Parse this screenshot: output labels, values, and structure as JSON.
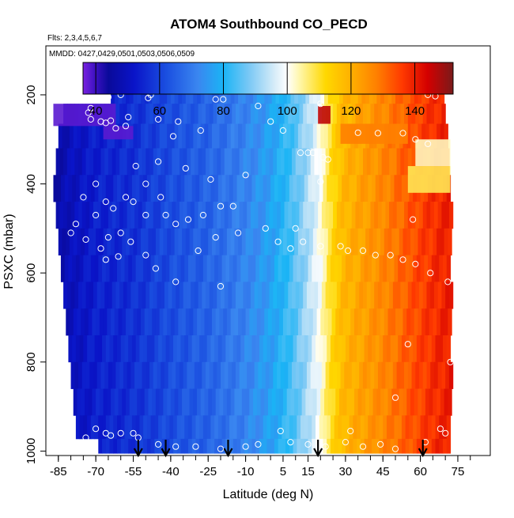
{
  "chart_data": {
    "type": "heatmap",
    "title": "ATOM4 Southbound CO_PECD",
    "subtitle_flights": "Flts: 2,3,4,5,6,7",
    "subtitle_dates": "MMDD: 0427,0429,0501,0503,0506,0509",
    "xlabel": "Latitude (deg N)",
    "ylabel": "PSXC (mbar)",
    "xlim": [
      -90,
      88
    ],
    "ylim": [
      1010,
      90
    ],
    "y_reverse": true,
    "x_ticks": [
      -85,
      -70,
      -55,
      -40,
      -25,
      -10,
      5,
      15,
      30,
      45,
      60,
      75
    ],
    "y_ticks": [
      200,
      400,
      600,
      800,
      1000
    ],
    "colorbar": {
      "range": [
        36,
        152
      ],
      "ticks": [
        40,
        60,
        80,
        100,
        120,
        140
      ],
      "divider_values": [
        40,
        60,
        80,
        100,
        120,
        140
      ],
      "stops": [
        [
          36,
          "#7a22e0"
        ],
        [
          40,
          "#3a10c0"
        ],
        [
          44,
          "#0a0a9a"
        ],
        [
          52,
          "#0a14c8"
        ],
        [
          62,
          "#1a4ee0"
        ],
        [
          72,
          "#3a86f0"
        ],
        [
          80,
          "#1ab4f5"
        ],
        [
          88,
          "#7ac8f5"
        ],
        [
          96,
          "#d6ecf8"
        ],
        [
          100,
          "#ffffff"
        ],
        [
          104,
          "#fff6a8"
        ],
        [
          112,
          "#ffd800"
        ],
        [
          120,
          "#ffb000"
        ],
        [
          128,
          "#ff8000"
        ],
        [
          136,
          "#ff3a00"
        ],
        [
          144,
          "#d40000"
        ],
        [
          152,
          "#7a1a1a"
        ]
      ]
    },
    "field": {
      "pressure_rows": [
        {
          "p": 200,
          "lat_min": -64,
          "lat_max": 69
        },
        {
          "p": 240,
          "lat_min": -83,
          "lat_max": 70
        },
        {
          "p": 290,
          "lat_min": -85,
          "lat_max": 71
        },
        {
          "p": 350,
          "lat_min": -86,
          "lat_max": 71
        },
        {
          "p": 410,
          "lat_min": -87,
          "lat_max": 71
        },
        {
          "p": 470,
          "lat_min": -86,
          "lat_max": 72
        },
        {
          "p": 530,
          "lat_min": -85,
          "lat_max": 72
        },
        {
          "p": 590,
          "lat_min": -84,
          "lat_max": 72
        },
        {
          "p": 650,
          "lat_min": -83,
          "lat_max": 72
        },
        {
          "p": 710,
          "lat_min": -82,
          "lat_max": 72
        },
        {
          "p": 770,
          "lat_min": -81,
          "lat_max": 72
        },
        {
          "p": 830,
          "lat_min": -80,
          "lat_max": 72
        },
        {
          "p": 890,
          "lat_min": -79,
          "lat_max": 72
        },
        {
          "p": 950,
          "lat_min": -78,
          "lat_max": 72
        },
        {
          "p": 995,
          "lat_min": -69,
          "lat_max": 72
        }
      ],
      "lat_profile": [
        [
          -87,
          46
        ],
        [
          -80,
          50
        ],
        [
          -70,
          54
        ],
        [
          -55,
          57
        ],
        [
          -40,
          62
        ],
        [
          -25,
          66
        ],
        [
          -10,
          72
        ],
        [
          0,
          77
        ],
        [
          8,
          84
        ],
        [
          14,
          92
        ],
        [
          19,
          100
        ],
        [
          23,
          110
        ],
        [
          28,
          118
        ],
        [
          35,
          122
        ],
        [
          45,
          127
        ],
        [
          55,
          133
        ],
        [
          65,
          138
        ],
        [
          72,
          140
        ]
      ],
      "upper_anomalies": [
        {
          "p_range": [
            220,
            270
          ],
          "lat_range": [
            -87,
            -62
          ],
          "value": 38
        },
        {
          "p_range": [
            270,
            300
          ],
          "lat_range": [
            -67,
            -55
          ],
          "value": 38
        },
        {
          "p_range": [
            225,
            265
          ],
          "lat_range": [
            19,
            24
          ],
          "value": 146
        },
        {
          "p_range": [
            265,
            310
          ],
          "lat_range": [
            28,
            55
          ],
          "value": 128
        },
        {
          "p_range": [
            300,
            360
          ],
          "lat_range": [
            58,
            72
          ],
          "value": 103
        },
        {
          "p_range": [
            360,
            420
          ],
          "lat_range": [
            55,
            72
          ],
          "value": 108
        }
      ]
    },
    "observations": [
      [
        -60,
        200
      ],
      [
        -65,
        205
      ],
      [
        -48,
        200
      ],
      [
        -49,
        207
      ],
      [
        -22,
        210
      ],
      [
        -19,
        210
      ],
      [
        -5,
        225
      ],
      [
        20,
        220
      ],
      [
        63,
        200
      ],
      [
        66,
        203
      ],
      [
        -72,
        230
      ],
      [
        -73,
        240
      ],
      [
        -68,
        260
      ],
      [
        -64,
        258
      ],
      [
        -57,
        250
      ],
      [
        -45,
        255
      ],
      [
        -37,
        260
      ],
      [
        -28,
        280
      ],
      [
        0,
        260
      ],
      [
        5,
        280
      ],
      [
        -72,
        255
      ],
      [
        -66,
        263
      ],
      [
        -62,
        275
      ],
      [
        -58,
        270
      ],
      [
        -39,
        293
      ],
      [
        15,
        330
      ],
      [
        21,
        340
      ],
      [
        35,
        285
      ],
      [
        43,
        286
      ],
      [
        53,
        286
      ],
      [
        58,
        300
      ],
      [
        63,
        310
      ],
      [
        -54,
        360
      ],
      [
        -45,
        350
      ],
      [
        -34,
        365
      ],
      [
        -24,
        390
      ],
      [
        -10,
        380
      ],
      [
        12,
        330
      ],
      [
        17,
        330
      ],
      [
        23,
        345
      ],
      [
        20,
        395
      ],
      [
        -75,
        430
      ],
      [
        -70,
        400
      ],
      [
        -66,
        440
      ],
      [
        -63,
        455
      ],
      [
        -58,
        430
      ],
      [
        -55,
        440
      ],
      [
        -50,
        400
      ],
      [
        -44,
        430
      ],
      [
        -42,
        470
      ],
      [
        -38,
        490
      ],
      [
        -33,
        480
      ],
      [
        -27,
        470
      ],
      [
        -20,
        450
      ],
      [
        -15,
        450
      ],
      [
        -70,
        470
      ],
      [
        -78,
        490
      ],
      [
        -80,
        510
      ],
      [
        -74,
        525
      ],
      [
        -68,
        545
      ],
      [
        -65,
        520
      ],
      [
        -60,
        510
      ],
      [
        -56,
        530
      ],
      [
        -50,
        560
      ],
      [
        -46,
        590
      ],
      [
        -38,
        620
      ],
      [
        -29,
        550
      ],
      [
        -22,
        520
      ],
      [
        -13,
        510
      ],
      [
        -2,
        500
      ],
      [
        3,
        530
      ],
      [
        10,
        500
      ],
      [
        13,
        530
      ],
      [
        20,
        540
      ],
      [
        28,
        540
      ],
      [
        31,
        550
      ],
      [
        37,
        550
      ],
      [
        42,
        560
      ],
      [
        48,
        560
      ],
      [
        53,
        570
      ],
      [
        58,
        580
      ],
      [
        64,
        600
      ],
      [
        71,
        620
      ],
      [
        -20,
        630
      ],
      [
        8,
        545
      ],
      [
        -66,
        570
      ],
      [
        -61,
        563
      ],
      [
        -50,
        470
      ],
      [
        57,
        480
      ],
      [
        72,
        800
      ],
      [
        55,
        760
      ],
      [
        50,
        880
      ],
      [
        -70,
        950
      ],
      [
        -66,
        960
      ],
      [
        -60,
        960
      ],
      [
        -55,
        960
      ],
      [
        -53,
        970
      ],
      [
        -45,
        985
      ],
      [
        -38,
        990
      ],
      [
        -30,
        990
      ],
      [
        -20,
        995
      ],
      [
        -10,
        990
      ],
      [
        -5,
        985
      ],
      [
        4,
        955
      ],
      [
        8,
        980
      ],
      [
        15,
        985
      ],
      [
        22,
        990
      ],
      [
        30,
        980
      ],
      [
        37,
        990
      ],
      [
        44,
        985
      ],
      [
        50,
        995
      ],
      [
        68,
        950
      ],
      [
        70,
        960
      ],
      [
        -80,
        960
      ],
      [
        -74,
        970
      ],
      [
        -64,
        965
      ],
      [
        32,
        955
      ],
      [
        62,
        980
      ]
    ],
    "arrow_latitudes": [
      -53,
      -42,
      -17,
      19,
      61
    ]
  }
}
